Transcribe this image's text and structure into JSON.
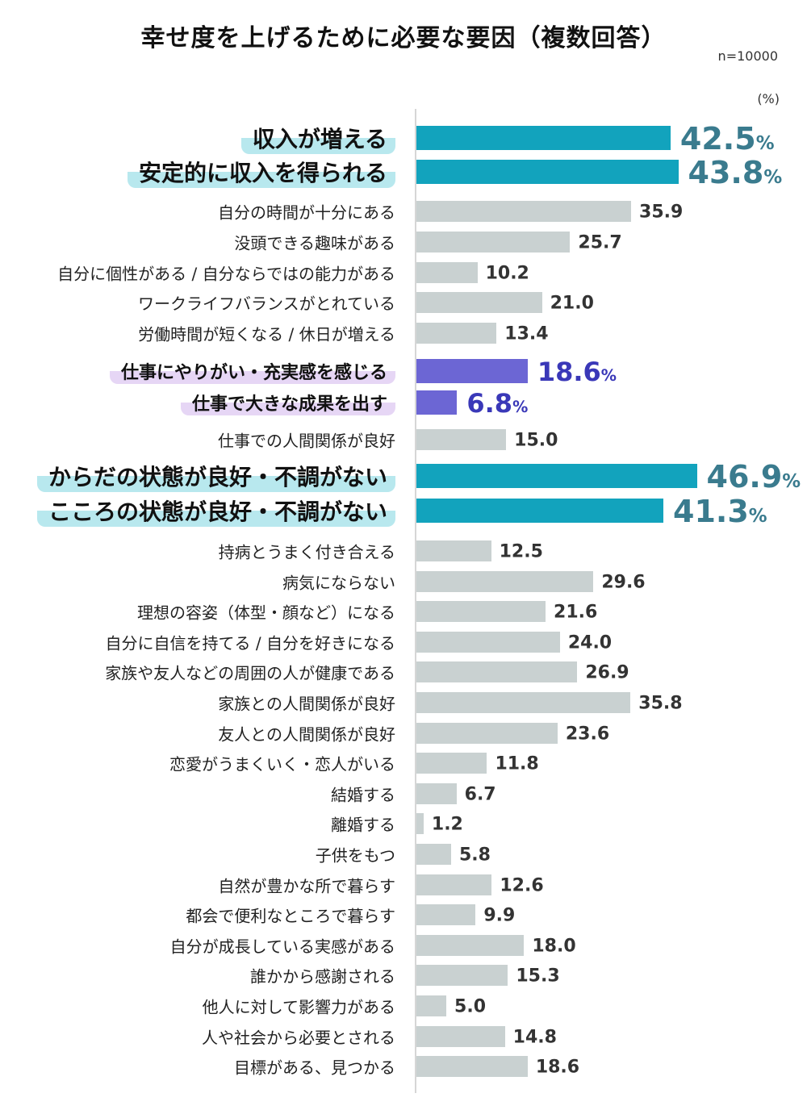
{
  "chart_data": {
    "type": "bar",
    "orientation": "horizontal",
    "title": "幸せ度を上げるために必要な要因（複数回答）",
    "sample_note": "n=10000",
    "unit_label": "(%)",
    "xlim": [
      0,
      50
    ],
    "grid": false,
    "colors": {
      "teal": "#12a3bd",
      "purple": "#6c66d4",
      "gray": "#c9d1d1"
    },
    "categories": [
      "収入が増える",
      "安定的に収入を得られる",
      "自分の時間が十分にある",
      "没頭できる趣味がある",
      "自分に個性がある / 自分ならではの能力がある",
      "ワークライフバランスがとれている",
      "労働時間が短くなる / 休日が増える",
      "仕事にやりがい・充実感を感じる",
      "仕事で大きな成果を出す",
      "仕事での人間関係が良好",
      "からだの状態が良好・不調がない",
      "こころの状態が良好・不調がない",
      "持病とうまく付き合える",
      "病気にならない",
      "理想の容姿（体型・顔など）になる",
      "自分に自信を持てる / 自分を好きになる",
      "家族や友人などの周囲の人が健康である",
      "家族との人間関係が良好",
      "友人との人間関係が良好",
      "恋愛がうまくいく・恋人がいる",
      "結婚する",
      "離婚する",
      "子供をもつ",
      "自然が豊かな所で暮らす",
      "都会で便利なところで暮らす",
      "自分が成長している実感がある",
      "誰かから感謝される",
      "他人に対して影響力がある",
      "人や社会から必要とされる",
      "目標がある、見つかる"
    ],
    "values": [
      42.5,
      43.8,
      35.9,
      25.7,
      10.2,
      21.0,
      13.4,
      18.6,
      6.8,
      15.0,
      46.9,
      41.3,
      12.5,
      29.6,
      21.6,
      24.0,
      26.9,
      35.8,
      23.6,
      11.8,
      6.7,
      1.2,
      5.8,
      12.6,
      9.9,
      18.0,
      15.3,
      5.0,
      14.8,
      18.6
    ],
    "highlight": [
      "teal",
      "teal",
      "",
      "",
      "",
      "",
      "",
      "purple",
      "purple",
      "",
      "teal",
      "teal",
      "",
      "",
      "",
      "",
      "",
      "",
      "",
      "",
      "",
      "",
      "",
      "",
      "",
      "",
      "",
      "",
      "",
      ""
    ],
    "percent_sign": "%"
  }
}
